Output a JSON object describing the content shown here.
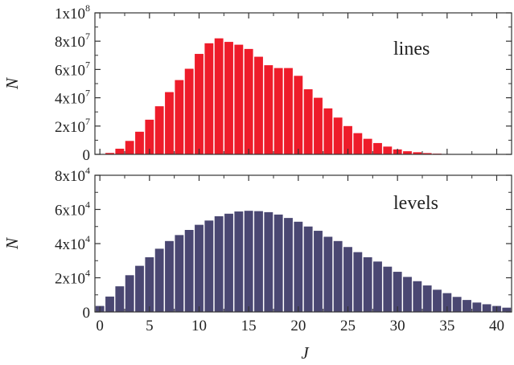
{
  "chart_data": [
    {
      "type": "bar",
      "panel_label": "lines",
      "ylabel": "N",
      "xlabel": "",
      "xlim": [
        -0.5,
        41.5
      ],
      "ylim": [
        0,
        100000000
      ],
      "bar_color": "#ee1c2a",
      "yticks": [
        {
          "value": 0,
          "base": "0",
          "exp": ""
        },
        {
          "value": 20000000,
          "base": "2x10",
          "exp": "7"
        },
        {
          "value": 40000000,
          "base": "4x10",
          "exp": "7"
        },
        {
          "value": 60000000,
          "base": "6x10",
          "exp": "7"
        },
        {
          "value": 80000000,
          "base": "8x10",
          "exp": "7"
        },
        {
          "value": 100000000,
          "base": "1x10",
          "exp": "8"
        }
      ],
      "x": [
        0,
        1,
        2,
        3,
        4,
        5,
        6,
        7,
        8,
        9,
        10,
        11,
        12,
        13,
        14,
        15,
        16,
        17,
        18,
        19,
        20,
        21,
        22,
        23,
        24,
        25,
        26,
        27,
        28,
        29,
        30,
        31,
        32,
        33,
        34,
        35,
        36,
        37,
        38,
        39,
        40,
        41
      ],
      "values": [
        0,
        1000000,
        4000000,
        9500000,
        16000000,
        24500000,
        34000000,
        44000000,
        52500000,
        60500000,
        71000000,
        78500000,
        82000000,
        79500000,
        77500000,
        74500000,
        69000000,
        63000000,
        61000000,
        61000000,
        55500000,
        46000000,
        40000000,
        32500000,
        26000000,
        20000000,
        15000000,
        11000000,
        8000000,
        5500000,
        3500000,
        2200000,
        1500000,
        900000,
        500000,
        300000,
        150000,
        80000,
        40000,
        20000,
        10000,
        5000
      ]
    },
    {
      "type": "bar",
      "panel_label": "levels",
      "ylabel": "N",
      "xlabel": "J",
      "xlim": [
        -0.5,
        41.5
      ],
      "ylim": [
        0,
        80000
      ],
      "bar_color": "#4a4772",
      "yticks": [
        {
          "value": 0,
          "base": "0",
          "exp": ""
        },
        {
          "value": 20000,
          "base": "2x10",
          "exp": "4"
        },
        {
          "value": 40000,
          "base": "4x10",
          "exp": "4"
        },
        {
          "value": 60000,
          "base": "6x10",
          "exp": "4"
        },
        {
          "value": 80000,
          "base": "8x10",
          "exp": "4"
        }
      ],
      "xticks": [
        0,
        5,
        10,
        15,
        20,
        25,
        30,
        35,
        40
      ],
      "x": [
        0,
        1,
        2,
        3,
        4,
        5,
        6,
        7,
        8,
        9,
        10,
        11,
        12,
        13,
        14,
        15,
        16,
        17,
        18,
        19,
        20,
        21,
        22,
        23,
        24,
        25,
        26,
        27,
        28,
        29,
        30,
        31,
        32,
        33,
        34,
        35,
        36,
        37,
        38,
        39,
        40,
        41
      ],
      "values": [
        3500,
        9000,
        15000,
        21500,
        27000,
        32000,
        37000,
        41500,
        45000,
        48000,
        51000,
        53500,
        56000,
        57500,
        58800,
        59200,
        59000,
        58400,
        57000,
        55000,
        52800,
        50000,
        47500,
        44000,
        41500,
        38000,
        35000,
        32000,
        29500,
        26500,
        23500,
        20500,
        18000,
        15500,
        13000,
        11000,
        8800,
        7000,
        5500,
        4500,
        3500,
        2500
      ]
    }
  ]
}
